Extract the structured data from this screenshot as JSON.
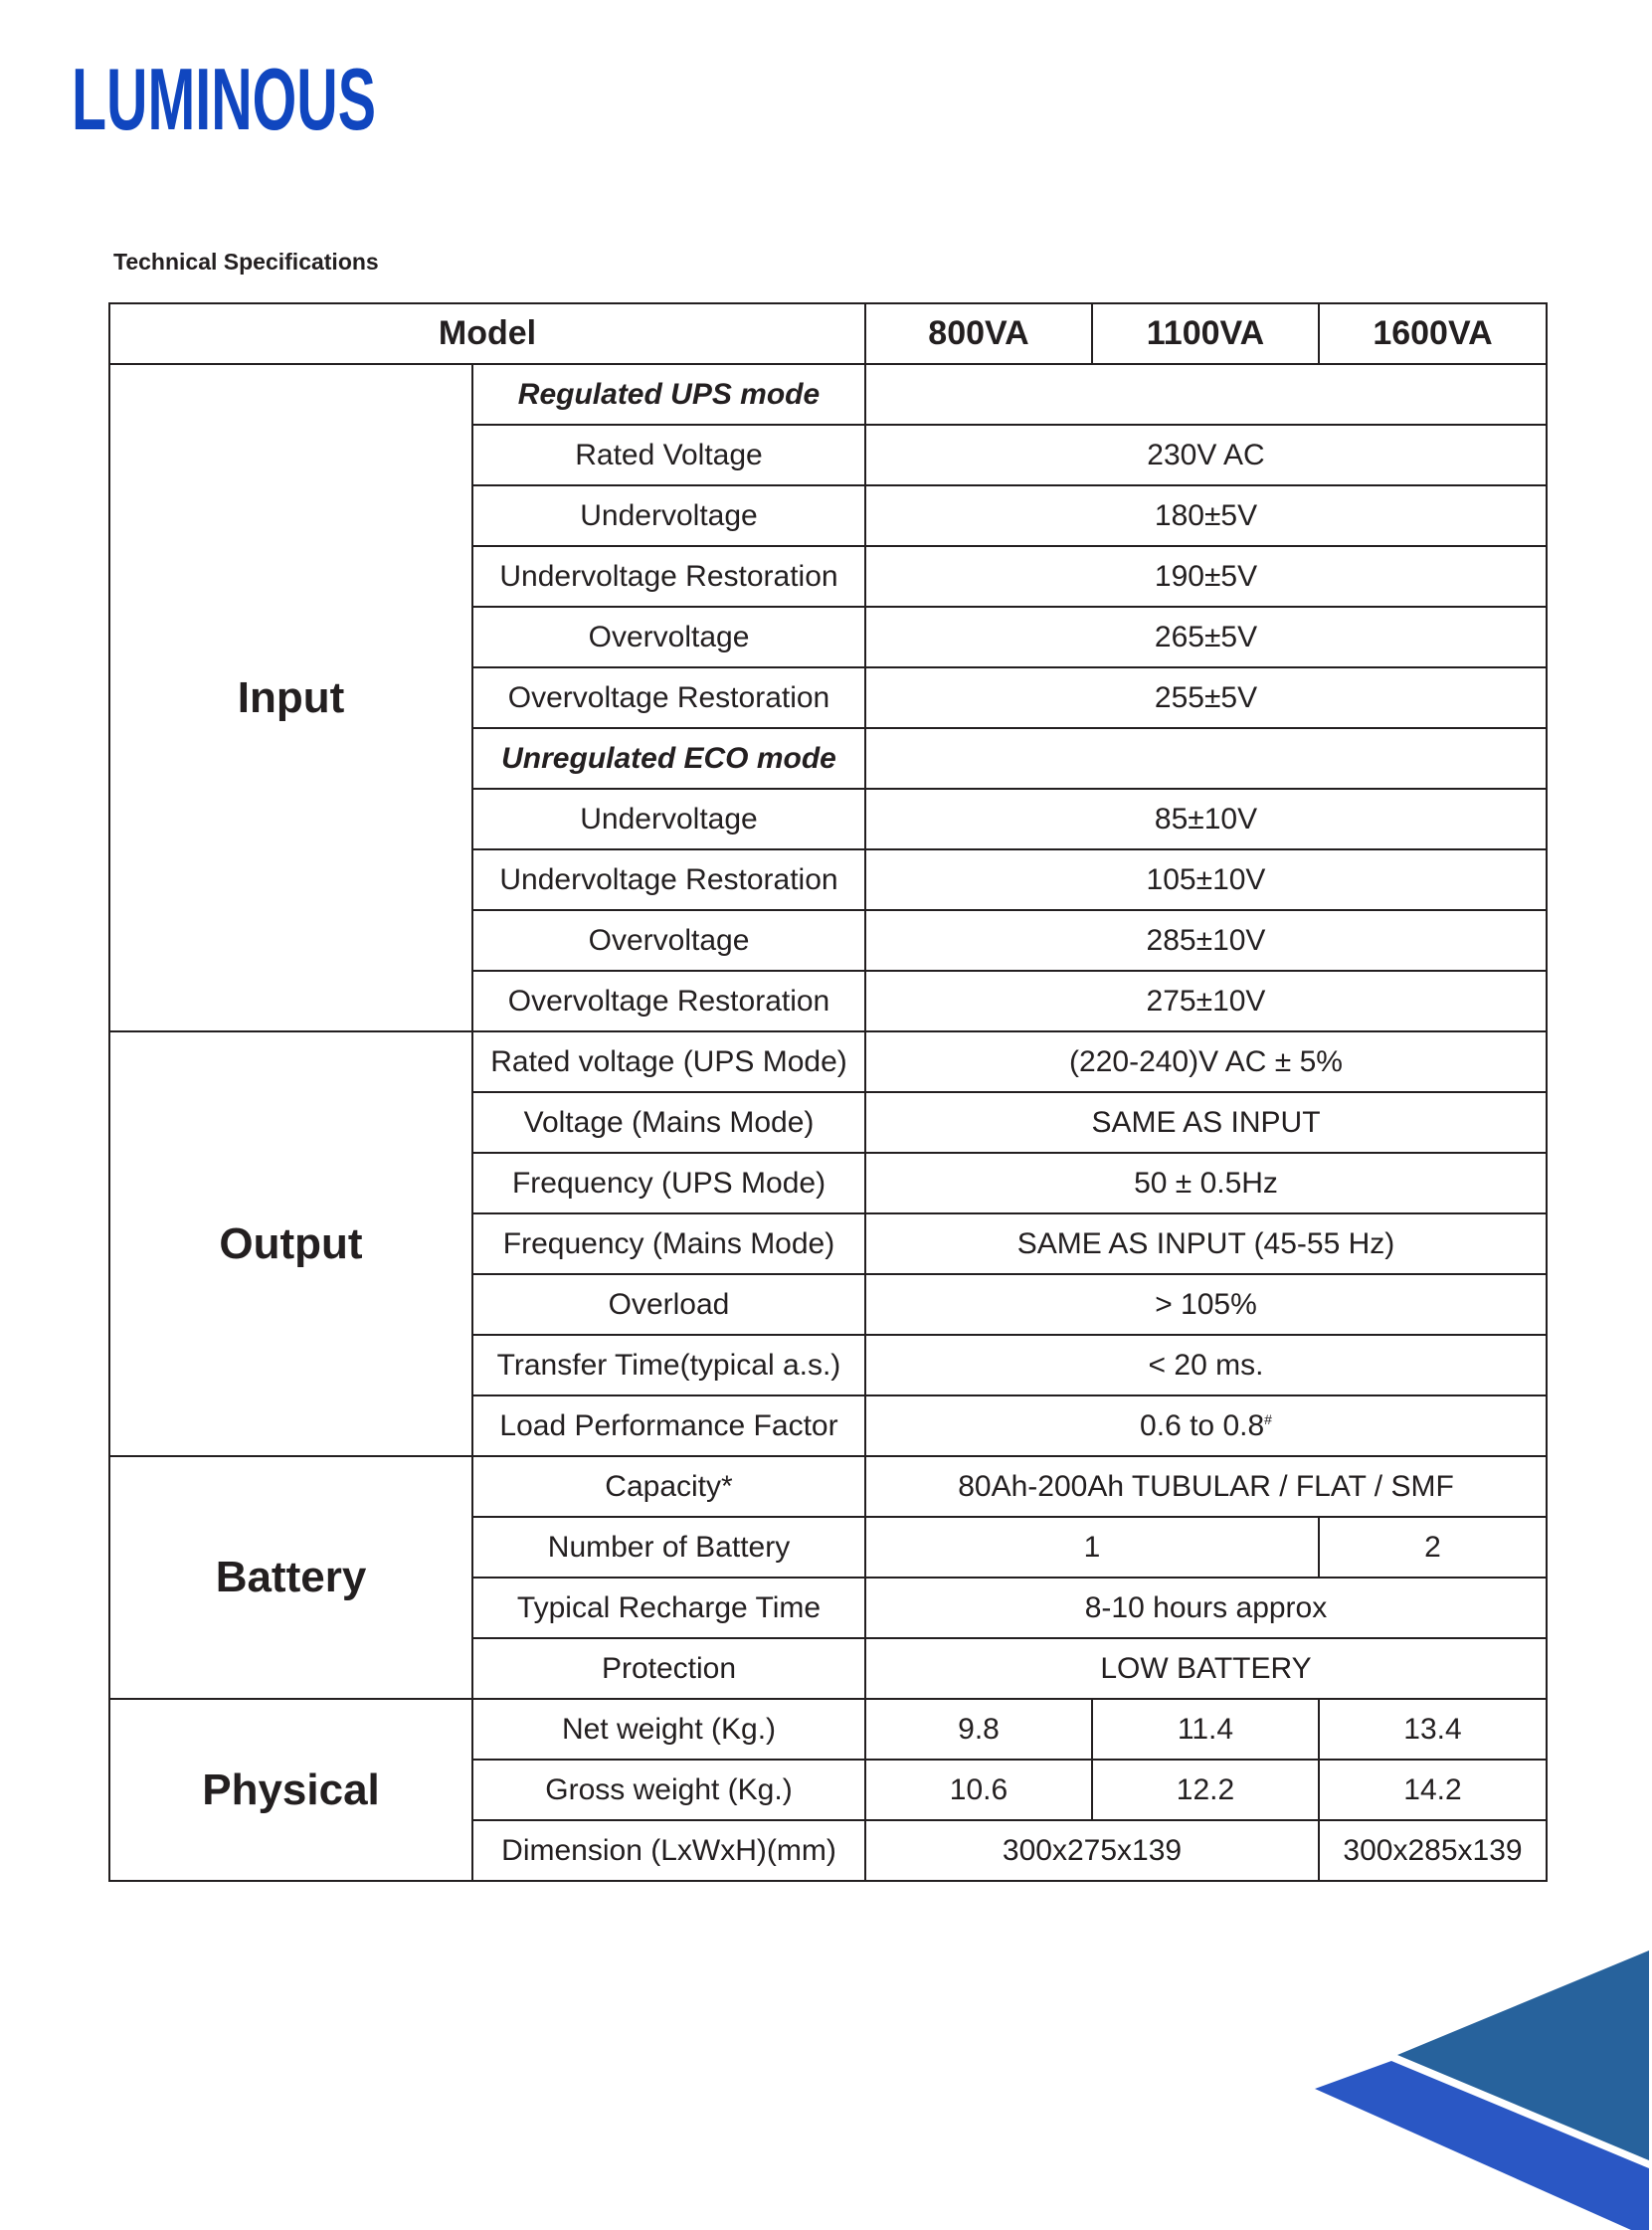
{
  "brand": {
    "logo_text": "LUMINOUS",
    "color": "#1046bf"
  },
  "title": "Technical Specifications",
  "header": {
    "model_label": "Model",
    "models": [
      "800VA",
      "1100VA",
      "1600VA"
    ]
  },
  "sections": [
    {
      "name": "Input",
      "rows": [
        {
          "label": "Regulated UPS mode",
          "subheader": true,
          "values": [
            ""
          ]
        },
        {
          "label": "Rated Voltage",
          "values": [
            "230V AC"
          ]
        },
        {
          "label": "Undervoltage",
          "values": [
            "180±5V"
          ]
        },
        {
          "label": "Undervoltage Restoration",
          "values": [
            "190±5V"
          ]
        },
        {
          "label": "Overvoltage",
          "values": [
            "265±5V"
          ]
        },
        {
          "label": "Overvoltage Restoration",
          "values": [
            "255±5V"
          ]
        },
        {
          "label": "Unregulated ECO mode",
          "subheader": true,
          "values": [
            ""
          ]
        },
        {
          "label": "Undervoltage",
          "values": [
            "85±10V"
          ]
        },
        {
          "label": "Undervoltage Restoration",
          "values": [
            "105±10V"
          ]
        },
        {
          "label": "Overvoltage",
          "values": [
            "285±10V"
          ]
        },
        {
          "label": "Overvoltage Restoration",
          "values": [
            "275±10V"
          ]
        }
      ]
    },
    {
      "name": "Output",
      "rows": [
        {
          "label": "Rated voltage (UPS Mode)",
          "values": [
            "(220-240)V AC ± 5%"
          ]
        },
        {
          "label": "Voltage (Mains Mode)",
          "values": [
            "SAME AS INPUT"
          ]
        },
        {
          "label": "Frequency (UPS Mode)",
          "values": [
            "50 ± 0.5Hz"
          ]
        },
        {
          "label": "Frequency (Mains Mode)",
          "values": [
            "SAME AS INPUT (45-55 Hz)"
          ]
        },
        {
          "label": "Overload",
          "values": [
            "> 105%"
          ]
        },
        {
          "label": "Transfer Time(typical a.s.)",
          "values": [
            "< 20 ms."
          ]
        },
        {
          "label": "Load Performance Factor",
          "values": [
            "0.6 to 0.8"
          ],
          "sup": "#"
        }
      ]
    },
    {
      "name": "Battery",
      "rows": [
        {
          "label": "Capacity*",
          "values": [
            "80Ah-200Ah TUBULAR / FLAT / SMF"
          ]
        },
        {
          "label": "Number of Battery",
          "values": [
            "1",
            "2"
          ]
        },
        {
          "label": "Typical Recharge Time",
          "values": [
            "8-10 hours approx"
          ]
        },
        {
          "label": "Protection",
          "values": [
            "LOW BATTERY"
          ]
        }
      ]
    },
    {
      "name": "Physical",
      "rows": [
        {
          "label": "Net weight (Kg.)",
          "values": [
            "9.8",
            "11.4",
            "13.4"
          ]
        },
        {
          "label": "Gross weight (Kg.)",
          "values": [
            "10.6",
            "12.2",
            "14.2"
          ]
        },
        {
          "label": "Dimension (LxWxH)(mm)",
          "values": [
            "300x275x139",
            "300x285x139"
          ]
        }
      ]
    }
  ],
  "decoration": {
    "triangle_dark": "#27629c",
    "triangle_blue": "#2a57c4"
  }
}
